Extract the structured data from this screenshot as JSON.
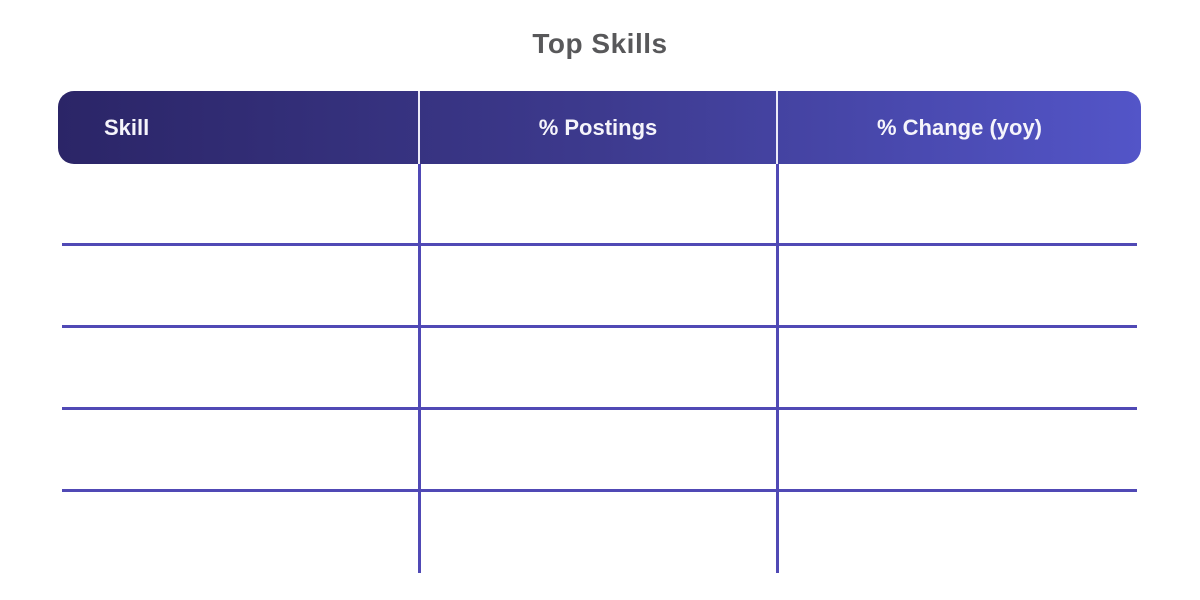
{
  "title": "Top Skills",
  "chart_data": {
    "type": "table",
    "title": "Top Skills",
    "columns": [
      "Skill",
      "% Postings",
      "% Change (yoy)"
    ],
    "rows": [
      [
        "",
        "",
        ""
      ],
      [
        "",
        "",
        ""
      ],
      [
        "",
        "",
        ""
      ],
      [
        "",
        "",
        ""
      ],
      [
        "",
        "",
        ""
      ]
    ],
    "notes": "table body cells are empty in the screenshot; grid lines only"
  },
  "colors": {
    "background": "#ffffff",
    "title_text": "#58585a",
    "header_gradient_start": "#2b2567",
    "header_gradient_end": "#5355c8",
    "header_text": "#f5f4fb",
    "header_divider": "#ecebf7",
    "grid_line": "#5049b5"
  }
}
